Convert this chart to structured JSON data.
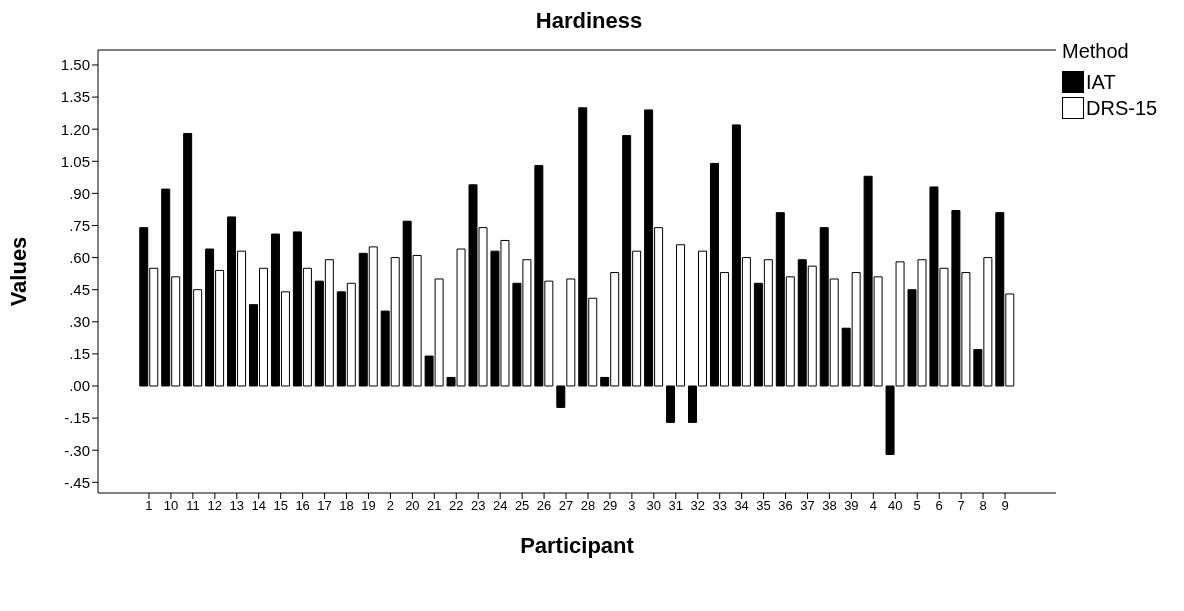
{
  "chart_data": {
    "type": "bar",
    "title": "Hardiness",
    "xlabel": "Participant",
    "ylabel": "Values",
    "legend_title": "Method",
    "categories": [
      "1",
      "10",
      "11",
      "12",
      "13",
      "14",
      "15",
      "16",
      "17",
      "18",
      "19",
      "2",
      "20",
      "21",
      "22",
      "23",
      "24",
      "25",
      "26",
      "27",
      "28",
      "29",
      "3",
      "30",
      "31",
      "32",
      "33",
      "34",
      "35",
      "36",
      "37",
      "38",
      "39",
      "4",
      "40",
      "5",
      "6",
      "7",
      "8",
      "9"
    ],
    "series": [
      {
        "name": "IAT",
        "color": "#000000",
        "values": [
          0.74,
          0.92,
          1.18,
          0.64,
          0.79,
          0.38,
          0.71,
          0.72,
          0.49,
          0.44,
          0.62,
          0.35,
          0.77,
          0.14,
          0.04,
          0.94,
          0.63,
          0.48,
          1.03,
          -0.1,
          1.3,
          0.04,
          1.17,
          1.29,
          -0.17,
          -0.17,
          1.04,
          1.22,
          0.48,
          0.81,
          0.59,
          0.74,
          0.27,
          0.98,
          -0.32,
          0.45,
          0.93,
          0.82,
          0.17,
          0.81
        ]
      },
      {
        "name": "DRS-15",
        "color": "#ffffff",
        "values": [
          0.55,
          0.51,
          0.45,
          0.54,
          0.63,
          0.55,
          0.44,
          0.55,
          0.59,
          0.48,
          0.65,
          0.6,
          0.61,
          0.5,
          0.64,
          0.74,
          0.68,
          0.59,
          0.49,
          0.5,
          0.41,
          0.53,
          0.63,
          0.74,
          0.66,
          0.63,
          0.53,
          0.6,
          0.59,
          0.51,
          0.56,
          0.5,
          0.53,
          0.51,
          0.58,
          0.59,
          0.55,
          0.53,
          0.6,
          0.43
        ]
      }
    ],
    "ylim": [
      -0.5,
      1.57
    ],
    "yticks": [
      {
        "value": 1.5,
        "label": "1.50"
      },
      {
        "value": 1.35,
        "label": "1.35"
      },
      {
        "value": 1.2,
        "label": "1.20"
      },
      {
        "value": 1.05,
        "label": "1.05"
      },
      {
        "value": 0.9,
        "label": ".90"
      },
      {
        "value": 0.75,
        "label": ".75"
      },
      {
        "value": 0.6,
        "label": ".60"
      },
      {
        "value": 0.45,
        "label": ".45"
      },
      {
        "value": 0.3,
        "label": ".30"
      },
      {
        "value": 0.15,
        "label": ".15"
      },
      {
        "value": 0,
        "label": ".00"
      },
      {
        "value": -0.15,
        "label": "-.15"
      },
      {
        "value": -0.3,
        "label": "-.30"
      },
      {
        "value": -0.45,
        "label": "-.45"
      }
    ],
    "legend": "top right"
  }
}
